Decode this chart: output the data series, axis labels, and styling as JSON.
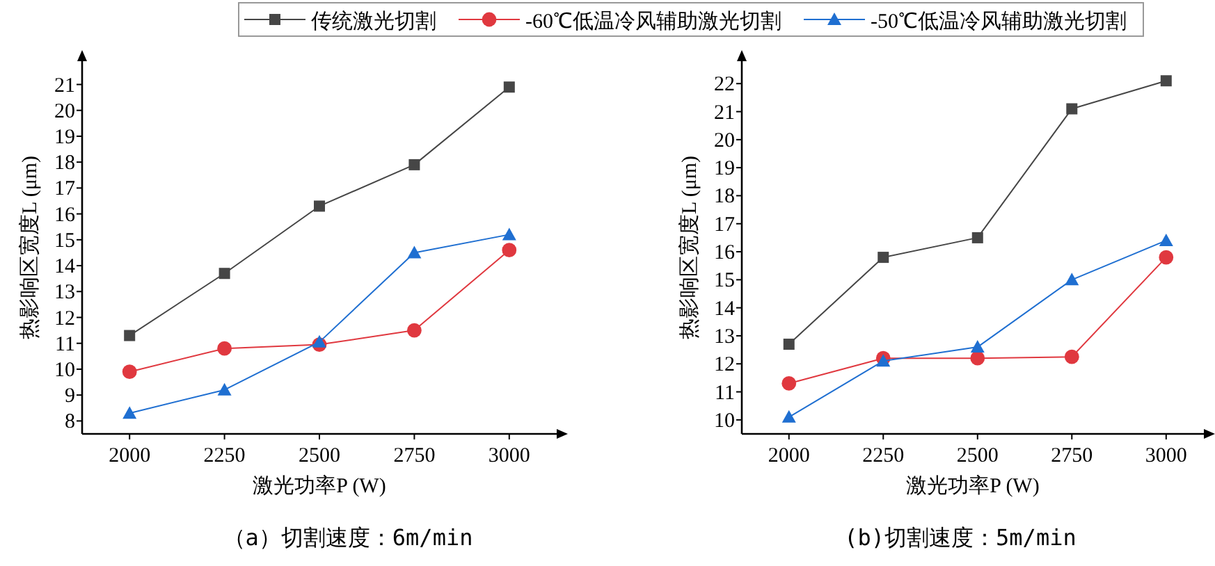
{
  "chart_data": [
    {
      "type": "line",
      "xlabel": "激光功率P (W)",
      "ylabel": "热影响区宽度L (μm)",
      "x": [
        2000,
        2250,
        2500,
        2750,
        3000
      ],
      "xlim": [
        1875,
        3125
      ],
      "ylim": [
        7.5,
        21.9
      ],
      "xticks": [
        2000,
        2250,
        2500,
        2750,
        3000
      ],
      "yticks": [
        8,
        9,
        10,
        11,
        12,
        13,
        14,
        15,
        16,
        17,
        18,
        19,
        20,
        21
      ],
      "legend": "top",
      "annotations": [
        "（a）切割速度：6m/min"
      ],
      "series": [
        {
          "name": "传统激光切割",
          "color": "#464646",
          "marker": "square",
          "values": [
            11.3,
            13.7,
            16.3,
            17.9,
            20.9
          ]
        },
        {
          "name": "-60℃低温冷风辅助激光切割",
          "color": "#e0383f",
          "marker": "circle",
          "values": [
            9.9,
            10.8,
            10.95,
            11.5,
            14.6
          ]
        },
        {
          "name": "-50℃低温冷风辅助激光切割",
          "color": "#1f6fd1",
          "marker": "triangle",
          "values": [
            8.3,
            9.2,
            11.05,
            14.5,
            15.2
          ]
        }
      ]
    },
    {
      "type": "line",
      "xlabel": "激光功率P (W)",
      "ylabel": "热影响区宽度L (μm)",
      "x": [
        2000,
        2250,
        2500,
        2750,
        3000
      ],
      "xlim": [
        1875,
        3100
      ],
      "ylim": [
        9.5,
        22.8
      ],
      "xticks": [
        2000,
        2250,
        2500,
        2750,
        3000
      ],
      "yticks": [
        10,
        11,
        12,
        13,
        14,
        15,
        16,
        17,
        18,
        19,
        20,
        21,
        22
      ],
      "legend": "top",
      "annotations": [
        "(b)切割速度：5m/min"
      ],
      "series": [
        {
          "name": "传统激光切割",
          "color": "#464646",
          "marker": "square",
          "values": [
            12.7,
            15.8,
            16.5,
            21.1,
            22.1
          ]
        },
        {
          "name": "-60℃低温冷风辅助激光切割",
          "color": "#e0383f",
          "marker": "circle",
          "values": [
            11.3,
            12.2,
            12.2,
            12.25,
            15.8
          ]
        },
        {
          "name": "-50℃低温冷风辅助激光切割",
          "color": "#1f6fd1",
          "marker": "triangle",
          "values": [
            10.1,
            12.1,
            12.6,
            15.0,
            16.4
          ]
        }
      ]
    }
  ]
}
